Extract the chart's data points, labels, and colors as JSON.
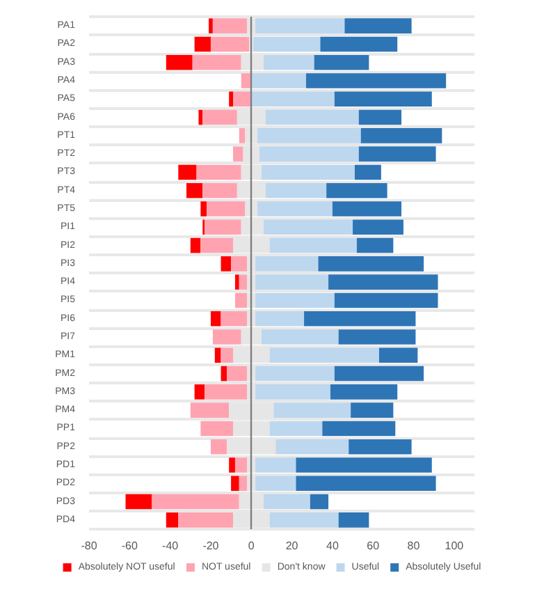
{
  "chart_data": {
    "type": "bar",
    "orientation": "horizontal",
    "categories": [
      "PA1",
      "PA2",
      "PA3",
      "PA4",
      "PA5",
      "PA6",
      "PT1",
      "PT2",
      "PT3",
      "PT4",
      "PT5",
      "PI1",
      "PI2",
      "PI3",
      "PI4",
      "PI5",
      "PI6",
      "PI7",
      "PM1",
      "PM2",
      "PM3",
      "PM4",
      "PP1",
      "PP2",
      "PD1",
      "PD2",
      "PD3",
      "PD4"
    ],
    "series": [
      {
        "name": "Absolutely NOT useful",
        "color": "#ff0000",
        "base": [
          -21,
          -28,
          -42,
          null,
          -11,
          -26,
          null,
          null,
          -36,
          -32,
          -25,
          -24,
          -30,
          -15,
          -8,
          null,
          -20,
          null,
          -18,
          -15,
          -28,
          null,
          null,
          null,
          -11,
          -10,
          -62,
          -42
        ],
        "values": [
          2,
          8,
          13,
          null,
          2,
          2,
          null,
          null,
          9,
          8,
          3,
          1,
          5,
          5,
          2,
          null,
          5,
          null,
          3,
          3,
          5,
          null,
          null,
          null,
          3,
          4,
          13,
          6
        ]
      },
      {
        "name": "NOT useful",
        "color": "#ffa3b1",
        "base": [
          -19,
          -20,
          -29,
          -5,
          -9,
          -24,
          -6,
          -9,
          -27,
          -24,
          -22,
          -23,
          -25,
          -10,
          -6,
          -8,
          -15,
          -19,
          -15,
          -12,
          -23,
          -30,
          -25,
          -20,
          -8,
          -6,
          -49,
          -36
        ],
        "values": [
          17,
          19,
          24,
          5,
          9,
          17,
          3,
          5,
          22,
          17,
          19,
          18,
          16,
          8,
          4,
          6,
          13,
          14,
          6,
          10,
          21,
          19,
          16,
          8,
          6,
          4,
          43,
          27
        ]
      },
      {
        "name": "Don't know",
        "color": "#e6e6e6",
        "base": [
          -2,
          -1,
          -5,
          null,
          null,
          -7,
          -3,
          -4,
          -5,
          -7,
          -3,
          -5,
          -9,
          -2,
          -2,
          -2,
          -2,
          -5,
          -9,
          -2,
          -2,
          -11,
          -9,
          -12,
          -2,
          -2,
          -6,
          -9
        ],
        "values": [
          4,
          2,
          11,
          null,
          null,
          14,
          6,
          8,
          10,
          14,
          6,
          11,
          18,
          4,
          4,
          4,
          4,
          10,
          18,
          4,
          4,
          22,
          18,
          24,
          4,
          4,
          12,
          18
        ]
      },
      {
        "name": "Useful",
        "color": "#bdd7ee",
        "base": [
          2,
          1,
          6,
          0,
          0,
          7,
          3,
          4,
          5,
          7,
          3,
          6,
          9,
          2,
          2,
          2,
          2,
          5,
          9,
          2,
          2,
          11,
          9,
          12,
          2,
          2,
          6,
          9
        ],
        "values": [
          44,
          33,
          25,
          27,
          41,
          46,
          51,
          49,
          46,
          30,
          37,
          44,
          43,
          31,
          36,
          39,
          24,
          38,
          54,
          39,
          37,
          38,
          26,
          36,
          20,
          20,
          23,
          34
        ]
      },
      {
        "name": "Absolutely Useful",
        "color": "#2e75b6",
        "base": [
          46,
          34,
          31,
          27,
          41,
          53,
          54,
          53,
          51,
          37,
          40,
          50,
          52,
          33,
          38,
          41,
          26,
          43,
          63,
          41,
          39,
          49,
          35,
          48,
          22,
          22,
          29,
          43
        ],
        "values": [
          33,
          38,
          27,
          69,
          48,
          21,
          40,
          38,
          13,
          30,
          34,
          25,
          18,
          52,
          54,
          51,
          55,
          38,
          19,
          44,
          33,
          21,
          36,
          31,
          67,
          69,
          9,
          15
        ]
      }
    ],
    "xlim": [
      -80,
      110
    ],
    "xticks": [
      -80,
      -60,
      -40,
      -20,
      0,
      20,
      40,
      60,
      80,
      100
    ],
    "ref_lines": [
      {
        "axis": "x",
        "value": 0,
        "color": "#7f7f7f"
      }
    ],
    "grid": "y",
    "legend": "bottom"
  }
}
